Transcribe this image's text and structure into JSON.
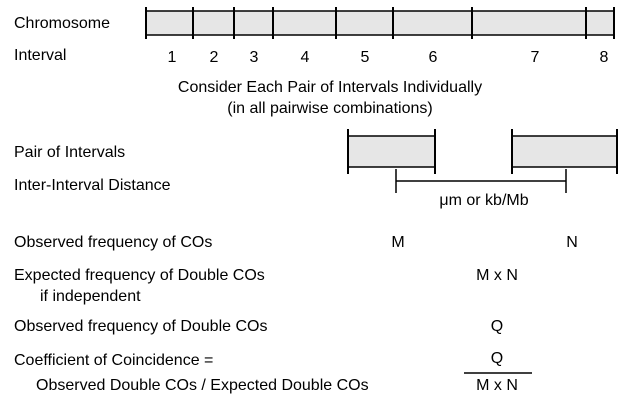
{
  "labels": {
    "chromosome": "Chromosome",
    "interval": "Interval",
    "pair": "Pair of Intervals",
    "distance": "Inter-Interval Distance"
  },
  "intervals": [
    "1",
    "2",
    "3",
    "4",
    "5",
    "6",
    "7",
    "8"
  ],
  "instruction": [
    "Consider Each Pair of Intervals Individually",
    "(in all pairwise combinations)"
  ],
  "distance_units": "μm or kb/Mb",
  "rows": {
    "observed_cos": {
      "label": "Observed frequency of COs",
      "m": "M",
      "n": "N"
    },
    "expected_double": {
      "label": "Expected frequency of Double COs",
      "label2": "if independent",
      "value": "M x N"
    },
    "observed_double": {
      "label": "Observed frequency of Double COs",
      "value": "Q"
    },
    "coincidence": {
      "label": "Coefficient of Coincidence =",
      "label2": "Observed Double COs / Expected Double COs",
      "numerator": "Q",
      "denominator": "M x N"
    }
  }
}
